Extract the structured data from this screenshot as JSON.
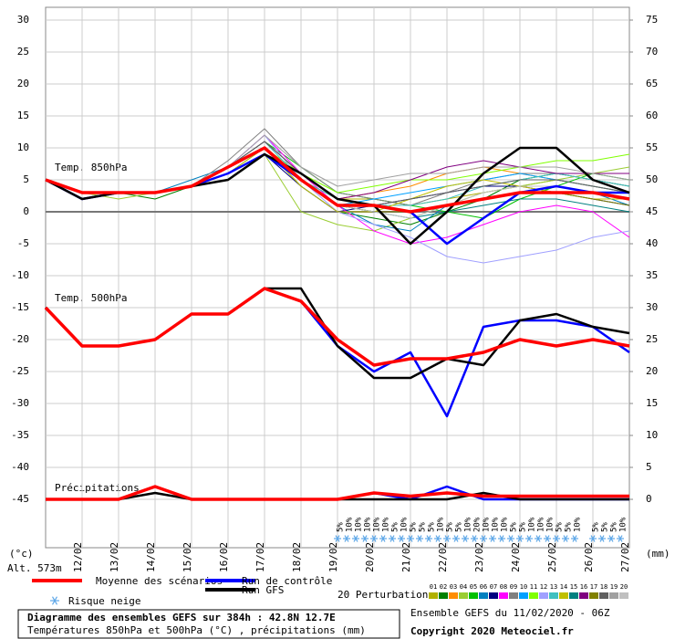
{
  "chart_data": {
    "type": "line",
    "title": "Diagramme des ensembles GEFS sur 384h : 42.8N 12.7E",
    "subtitle": "Températures 850hPa et 500hPa (°C) , précipitations (mm)",
    "source": "Ensemble GEFS du 11/02/2020 - 06Z",
    "copyright": "Copyright 2020 Meteociel.fr",
    "altitude": "Alt. 573m",
    "ylabel": "(°c)",
    "y2label": "(mm)",
    "annotations": [
      "Temp. 850hPa",
      "Temp. 500hPa",
      "Précipitations"
    ],
    "categories": [
      null,
      "12/02",
      "13/02",
      "14/02",
      "15/02",
      "16/02",
      "17/02",
      "18/02",
      "19/02",
      "20/02",
      "21/02",
      "22/02",
      "23/02",
      "24/02",
      "25/02",
      "26/02",
      "27/02"
    ],
    "ylim": [
      -45,
      30
    ],
    "yticks": [
      30,
      25,
      20,
      15,
      10,
      5,
      0,
      -5,
      -10,
      -15,
      -20,
      -25,
      -30,
      -35,
      -40,
      -45
    ],
    "y2lim": [
      0,
      75
    ],
    "y2ticks": [
      75,
      70,
      65,
      60,
      55,
      50,
      45,
      40,
      35,
      30,
      25,
      20,
      15,
      10,
      5,
      0
    ],
    "grid": true,
    "series": [
      {
        "name": "Moyenne des scénarios",
        "color": "#ff0000",
        "values": [
          5,
          3,
          3,
          3,
          4,
          7,
          10,
          5,
          1,
          1,
          0,
          1,
          2,
          3,
          3,
          3,
          2
        ]
      },
      {
        "name": "Run de contrôle",
        "color": "#0000ff",
        "values": [
          5,
          2,
          3,
          3,
          4,
          6,
          9,
          5,
          1,
          1,
          0,
          -5,
          -1,
          3,
          4,
          3,
          3
        ]
      },
      {
        "name": "Run GFS",
        "color": "#000000",
        "values": [
          5,
          2,
          3,
          3,
          4,
          5,
          9,
          6,
          2,
          1,
          -5,
          0,
          6,
          10,
          10,
          5,
          3
        ]
      },
      {
        "color": "#ff0000",
        "values": [
          -15,
          -21,
          -21,
          -20,
          -16,
          -16,
          -12,
          -14,
          -20,
          -24,
          -23,
          -23,
          -22,
          -20,
          -21,
          -20,
          -21
        ]
      },
      {
        "color": "#0000ff",
        "values": [
          -15,
          -21,
          -21,
          -20,
          -16,
          -16,
          -12,
          -14,
          -21,
          -25,
          -22,
          -32,
          -18,
          -17,
          -17,
          -18,
          -22
        ]
      },
      {
        "color": "#000000",
        "values": [
          -15,
          -21,
          -21,
          -20,
          -16,
          -16,
          -12,
          -12,
          -21,
          -26,
          -26,
          -23,
          -24,
          -17,
          -16,
          -18,
          -19
        ]
      },
      {
        "color": "#ff0000",
        "axis": "y2",
        "values": [
          0,
          0,
          0,
          2,
          0,
          0,
          0,
          0,
          0,
          1,
          0.5,
          1,
          0.5,
          0.5,
          0.5,
          0.5,
          0.5
        ]
      },
      {
        "color": "#0000ff",
        "axis": "y2",
        "values": [
          0,
          0,
          0,
          2,
          0,
          0,
          0,
          0,
          0,
          1,
          0,
          2,
          0,
          0,
          0,
          0,
          0
        ]
      },
      {
        "color": "#000000",
        "axis": "y2",
        "values": [
          0,
          0,
          0,
          1,
          0,
          0,
          0,
          0,
          0,
          0,
          0,
          0,
          1,
          0,
          0,
          0,
          0
        ]
      }
    ],
    "perturbations": {
      "label": "20 Perturbations",
      "series": [
        {
          "name": "01",
          "color": "#b0b000",
          "values": [
            5,
            3,
            3,
            3,
            4,
            7,
            11,
            6,
            2,
            2,
            1,
            2,
            3,
            4,
            5,
            4,
            3
          ]
        },
        {
          "name": "02",
          "color": "#008000",
          "values": [
            5,
            3,
            3,
            2,
            4,
            6,
            10,
            4,
            0,
            -1,
            -2,
            0,
            2,
            5,
            6,
            5,
            4
          ]
        },
        {
          "name": "03",
          "color": "#ff8c00",
          "values": [
            5,
            3,
            3,
            3,
            4,
            7,
            10,
            5,
            2,
            3,
            4,
            6,
            7,
            6,
            5,
            4,
            3
          ]
        },
        {
          "name": "04",
          "color": "#9acd32",
          "values": [
            5,
            3,
            2,
            3,
            4,
            6,
            9,
            0,
            -2,
            -3,
            -1,
            1,
            3,
            4,
            5,
            6,
            7
          ]
        },
        {
          "name": "05",
          "color": "#00c000",
          "values": [
            5,
            3,
            3,
            3,
            4,
            7,
            11,
            7,
            3,
            2,
            1,
            0,
            -1,
            2,
            4,
            6,
            5
          ]
        },
        {
          "name": "06",
          "color": "#0080c0",
          "values": [
            5,
            3,
            3,
            3,
            5,
            7,
            10,
            5,
            1,
            -2,
            -3,
            1,
            2,
            3,
            4,
            3,
            1
          ]
        },
        {
          "name": "07",
          "color": "#000080",
          "values": [
            5,
            2,
            3,
            3,
            4,
            6,
            9,
            4,
            0,
            1,
            2,
            3,
            4,
            4,
            3,
            2,
            1
          ]
        },
        {
          "name": "08",
          "color": "#ff00ff",
          "values": [
            5,
            3,
            3,
            3,
            4,
            7,
            12,
            6,
            1,
            -3,
            -5,
            -4,
            -2,
            0,
            1,
            0,
            -4
          ]
        },
        {
          "name": "09",
          "color": "#808080",
          "values": [
            5,
            3,
            3,
            3,
            4,
            8,
            13,
            7,
            3,
            2,
            1,
            3,
            5,
            6,
            6,
            5,
            4
          ]
        },
        {
          "name": "10",
          "color": "#00a0ff",
          "values": [
            5,
            3,
            3,
            3,
            4,
            7,
            10,
            5,
            1,
            2,
            3,
            4,
            5,
            6,
            5,
            4,
            3
          ]
        },
        {
          "name": "11",
          "color": "#80ff00",
          "values": [
            5,
            3,
            3,
            3,
            4,
            7,
            10,
            6,
            3,
            4,
            5,
            5,
            6,
            7,
            8,
            8,
            9
          ]
        },
        {
          "name": "12",
          "color": "#a0a0ff",
          "values": [
            5,
            3,
            3,
            3,
            4,
            7,
            12,
            5,
            0,
            -2,
            -4,
            -7,
            -8,
            -7,
            -6,
            -4,
            -3
          ]
        },
        {
          "name": "13",
          "color": "#40c0c0",
          "values": [
            5,
            3,
            3,
            3,
            4,
            7,
            11,
            5,
            2,
            1,
            1,
            2,
            4,
            5,
            6,
            5,
            4
          ]
        },
        {
          "name": "14",
          "color": "#c0c000",
          "values": [
            5,
            3,
            3,
            3,
            4,
            6,
            10,
            4,
            0,
            0,
            2,
            4,
            5,
            4,
            3,
            2,
            2
          ]
        },
        {
          "name": "15",
          "color": "#008080",
          "values": [
            5,
            3,
            3,
            3,
            4,
            7,
            10,
            5,
            1,
            0,
            -1,
            0,
            1,
            2,
            2,
            1,
            0
          ]
        },
        {
          "name": "16",
          "color": "#800080",
          "values": [
            5,
            3,
            3,
            3,
            4,
            7,
            11,
            6,
            2,
            3,
            5,
            7,
            8,
            7,
            6,
            6,
            6
          ]
        },
        {
          "name": "17",
          "color": "#808000",
          "values": [
            5,
            3,
            3,
            3,
            4,
            7,
            10,
            5,
            1,
            0,
            0,
            1,
            2,
            3,
            3,
            2,
            1
          ]
        },
        {
          "name": "18",
          "color": "#606060",
          "values": [
            5,
            3,
            3,
            3,
            4,
            7,
            11,
            6,
            2,
            1,
            2,
            3,
            4,
            5,
            5,
            4,
            3
          ]
        },
        {
          "name": "19",
          "color": "#a0a0a0",
          "values": [
            5,
            3,
            3,
            3,
            4,
            7,
            12,
            7,
            4,
            5,
            6,
            6,
            7,
            7,
            7,
            6,
            5
          ]
        },
        {
          "name": "20",
          "color": "#c0c0c0",
          "values": [
            5,
            3,
            3,
            3,
            4,
            7,
            10,
            5,
            1,
            0,
            -1,
            1,
            3,
            4,
            4,
            3,
            2
          ]
        }
      ]
    },
    "snow_risk": {
      "label": "Risque neige",
      "values": [
        5,
        10,
        10,
        10,
        10,
        10,
        5,
        10,
        5,
        5,
        5,
        10,
        5,
        5,
        10,
        20,
        10,
        10,
        10,
        5,
        5,
        10,
        10,
        10,
        5,
        5,
        10,
        null,
        5,
        5,
        5,
        10
      ],
      "value_labels": [
        "5%",
        "10%",
        "10%",
        "10%",
        "10%",
        "10%",
        "5%",
        "10%",
        "5%",
        "5%",
        "5%",
        "10%",
        "5%",
        "5%",
        "10%",
        "20%",
        "10%",
        "10%",
        "10%",
        "5%",
        "5%",
        "10%",
        "10%",
        "10%",
        "5%",
        "5%",
        "10%",
        null,
        "5%",
        "5%",
        "5%",
        "10%"
      ]
    }
  }
}
